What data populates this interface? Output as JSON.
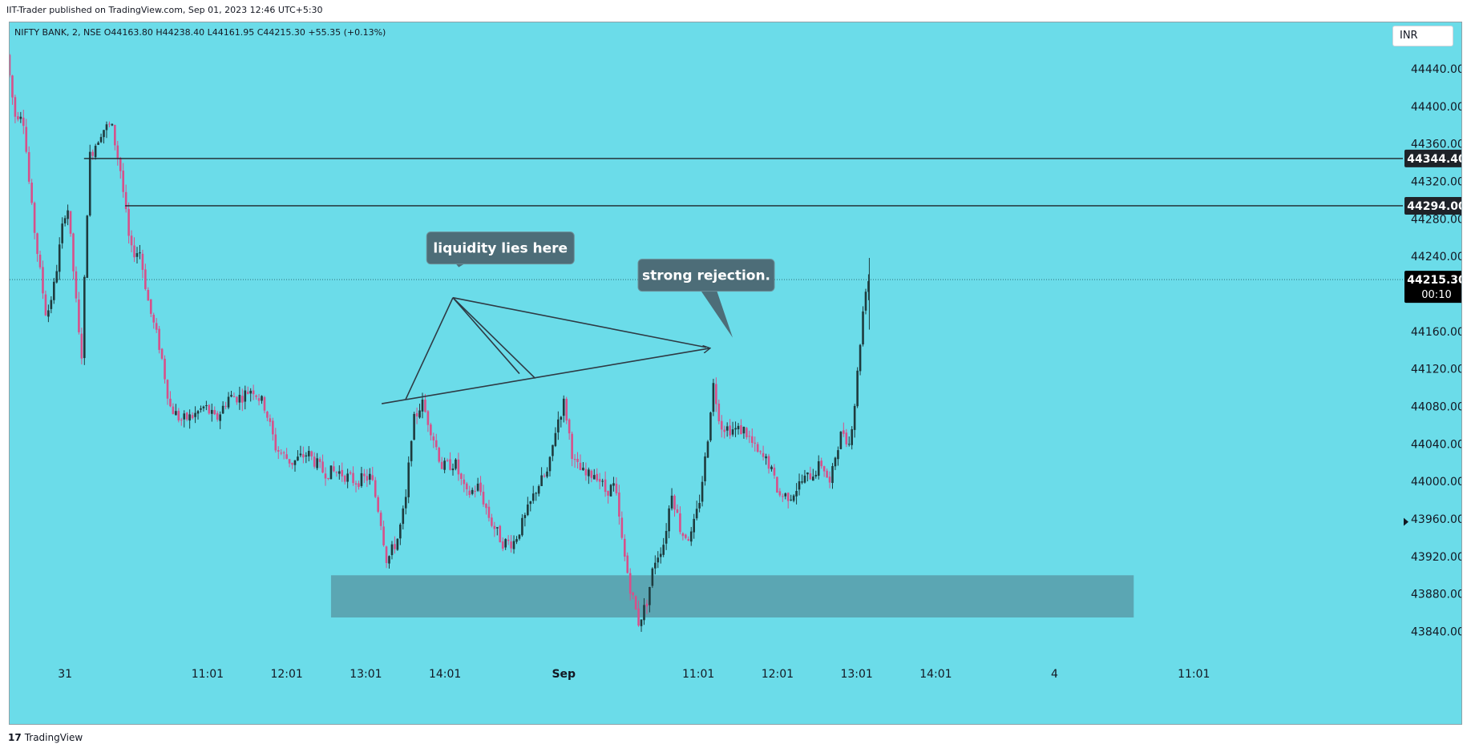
{
  "header": {
    "published_text": "IIT-Trader published on TradingView.com, Sep 01, 2023 12:46 UTC+5:30"
  },
  "legend": {
    "symbol_text": "NIFTY BANK, 2, NSE  O44163.80  H44238.40  L44161.95  C44215.30  +55.35 (+0.13%)"
  },
  "currency_label": "INR",
  "footer": {
    "logo_glyph": "17",
    "brand": "TradingView"
  },
  "colors": {
    "background": "#6bdce9",
    "bull_candle": "#1e3b3e",
    "bear_candle": "#d7508a",
    "zone_fill": "#5ba6b3",
    "callout_fill": "#4d6d78",
    "line": "#2e3a44"
  },
  "chart_data": {
    "type": "candlestick",
    "symbol": "NIFTY BANK",
    "interval": "2",
    "exchange": "NSE",
    "ohlc": {
      "open": 44163.8,
      "high": 44238.4,
      "low": 44161.95,
      "close": 44215.3,
      "change": 55.35,
      "change_pct": 0.13
    },
    "ylim": [
      43820,
      44475
    ],
    "y_ticks": [
      44440,
      44400,
      44360,
      44320,
      44280,
      44240,
      44160,
      44120,
      44080,
      44040,
      44000,
      43960,
      43920,
      43880,
      43840
    ],
    "y_tick_labels": [
      "44440.00",
      "44400.00",
      "44360.00",
      "44320.00",
      "44280.00",
      "44240.00",
      "44160.00",
      "44120.00",
      "44080.00",
      "44040.00",
      "44000.00",
      "43960.00",
      "43920.00",
      "43880.00",
      "43840.00"
    ],
    "x_range": [
      0,
      880
    ],
    "x_ticks": [
      {
        "label": "31",
        "x": 35
      },
      {
        "label": "11:01",
        "x": 125
      },
      {
        "label": "12:01",
        "x": 175
      },
      {
        "label": "13:01",
        "x": 225
      },
      {
        "label": "14:01",
        "x": 275
      },
      {
        "label": "Sep",
        "x": 350,
        "bold": true
      },
      {
        "label": "11:01",
        "x": 435
      },
      {
        "label": "12:01",
        "x": 485
      },
      {
        "label": "13:01",
        "x": 535
      },
      {
        "label": "14:01",
        "x": 585
      },
      {
        "label": "4",
        "x": 660
      },
      {
        "label": "11:01",
        "x": 748
      }
    ],
    "price_lines": [
      {
        "price": 44344.4,
        "label": "44344.40",
        "start_x": 47
      },
      {
        "price": 44294.0,
        "label": "44294.00",
        "start_x": 73
      }
    ],
    "current_price": {
      "price": 44215.3,
      "label": "44215.30",
      "countdown": "00:10"
    },
    "demand_zone": {
      "x_start": 203,
      "x_end": 710,
      "price_top": 43900,
      "price_bottom": 43855
    },
    "trend_lines": [
      {
        "from": {
          "x": 235,
          "price": 44083
        },
        "to": {
          "x": 442,
          "price": 44142
        },
        "arrow": true
      },
      {
        "from": {
          "x": 250,
          "price": 44087
        },
        "to": {
          "x": 280,
          "price": 44196
        }
      },
      {
        "from": {
          "x": 280,
          "price": 44196
        },
        "to": {
          "x": 332,
          "price": 44110
        }
      },
      {
        "from": {
          "x": 280,
          "price": 44196
        },
        "to": {
          "x": 322,
          "price": 44115
        }
      },
      {
        "from": {
          "x": 280,
          "price": 44196
        },
        "to": {
          "x": 440,
          "price": 44143
        }
      }
    ],
    "callouts": [
      {
        "text": "liquidity  lies here",
        "x_center": 310,
        "price": 44249
      },
      {
        "text": "strong rejection.",
        "x_center": 440,
        "price": 44220
      }
    ],
    "anchors": [
      {
        "x": 0,
        "price": 44455
      },
      {
        "x": 5,
        "price": 44390
      },
      {
        "x": 10,
        "price": 44395
      },
      {
        "x": 15,
        "price": 44300
      },
      {
        "x": 20,
        "price": 44235
      },
      {
        "x": 25,
        "price": 44175
      },
      {
        "x": 30,
        "price": 44210
      },
      {
        "x": 35,
        "price": 44270
      },
      {
        "x": 38,
        "price": 44300
      },
      {
        "x": 42,
        "price": 44225
      },
      {
        "x": 47,
        "price": 44125
      },
      {
        "x": 52,
        "price": 44345
      },
      {
        "x": 60,
        "price": 44375
      },
      {
        "x": 66,
        "price": 44380
      },
      {
        "x": 72,
        "price": 44330
      },
      {
        "x": 78,
        "price": 44245
      },
      {
        "x": 84,
        "price": 44245
      },
      {
        "x": 90,
        "price": 44185
      },
      {
        "x": 97,
        "price": 44140
      },
      {
        "x": 103,
        "price": 44080
      },
      {
        "x": 110,
        "price": 44065
      },
      {
        "x": 118,
        "price": 44070
      },
      {
        "x": 125,
        "price": 44080
      },
      {
        "x": 132,
        "price": 44065
      },
      {
        "x": 140,
        "price": 44090
      },
      {
        "x": 148,
        "price": 44090
      },
      {
        "x": 155,
        "price": 44100
      },
      {
        "x": 163,
        "price": 44080
      },
      {
        "x": 170,
        "price": 44035
      },
      {
        "x": 180,
        "price": 44020
      },
      {
        "x": 190,
        "price": 44030
      },
      {
        "x": 200,
        "price": 44010
      },
      {
        "x": 210,
        "price": 44010
      },
      {
        "x": 220,
        "price": 44000
      },
      {
        "x": 230,
        "price": 44005
      },
      {
        "x": 236,
        "price": 43960
      },
      {
        "x": 240,
        "price": 43915
      },
      {
        "x": 247,
        "price": 43940
      },
      {
        "x": 252,
        "price": 43980
      },
      {
        "x": 256,
        "price": 44060
      },
      {
        "x": 262,
        "price": 44085
      },
      {
        "x": 268,
        "price": 44055
      },
      {
        "x": 275,
        "price": 44015
      },
      {
        "x": 283,
        "price": 44020
      },
      {
        "x": 290,
        "price": 43985
      },
      {
        "x": 298,
        "price": 43995
      },
      {
        "x": 305,
        "price": 43960
      },
      {
        "x": 313,
        "price": 43935
      },
      {
        "x": 320,
        "price": 43935
      },
      {
        "x": 327,
        "price": 43960
      },
      {
        "x": 335,
        "price": 43995
      },
      {
        "x": 342,
        "price": 44010
      },
      {
        "x": 347,
        "price": 44060
      },
      {
        "x": 352,
        "price": 44085
      },
      {
        "x": 358,
        "price": 44020
      },
      {
        "x": 366,
        "price": 44005
      },
      {
        "x": 372,
        "price": 44010
      },
      {
        "x": 378,
        "price": 43990
      },
      {
        "x": 384,
        "price": 43995
      },
      {
        "x": 389,
        "price": 43930
      },
      {
        "x": 394,
        "price": 43885
      },
      {
        "x": 399,
        "price": 43850
      },
      {
        "x": 404,
        "price": 43870
      },
      {
        "x": 409,
        "price": 43915
      },
      {
        "x": 415,
        "price": 43935
      },
      {
        "x": 420,
        "price": 43990
      },
      {
        "x": 426,
        "price": 43945
      },
      {
        "x": 432,
        "price": 43940
      },
      {
        "x": 437,
        "price": 43975
      },
      {
        "x": 442,
        "price": 44035
      },
      {
        "x": 446,
        "price": 44105
      },
      {
        "x": 451,
        "price": 44060
      },
      {
        "x": 458,
        "price": 44055
      },
      {
        "x": 466,
        "price": 44055
      },
      {
        "x": 474,
        "price": 44030
      },
      {
        "x": 481,
        "price": 44020
      },
      {
        "x": 488,
        "price": 43985
      },
      {
        "x": 495,
        "price": 43985
      },
      {
        "x": 502,
        "price": 44000
      },
      {
        "x": 510,
        "price": 44010
      },
      {
        "x": 515,
        "price": 44020
      },
      {
        "x": 520,
        "price": 43995
      },
      {
        "x": 524,
        "price": 44035
      },
      {
        "x": 528,
        "price": 44055
      },
      {
        "x": 532,
        "price": 44040
      },
      {
        "x": 536,
        "price": 44090
      },
      {
        "x": 540,
        "price": 44170
      },
      {
        "x": 543,
        "price": 44215
      }
    ]
  }
}
